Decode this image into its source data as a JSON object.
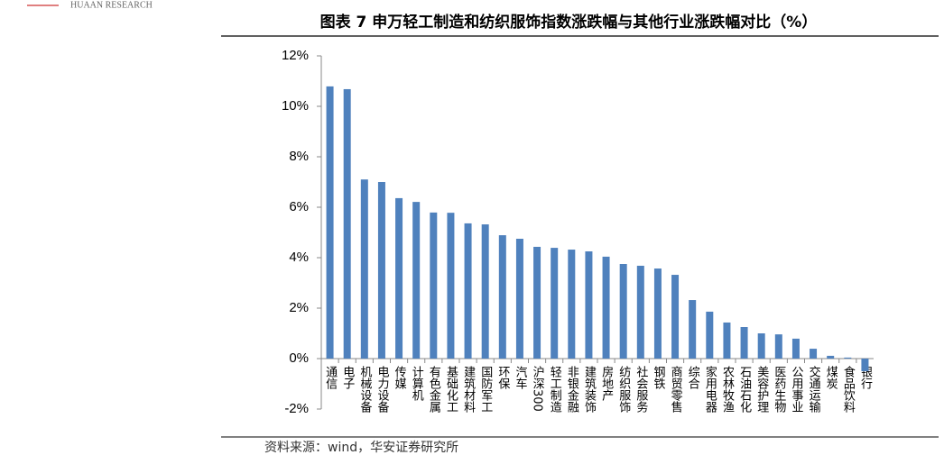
{
  "header": {
    "brand": "HUAAN RESEARCH"
  },
  "chart_data": {
    "type": "bar",
    "title": "图表 7 申万轻工制造和纺织服饰指数涨跌幅与其他行业涨跌幅对比（%）",
    "categories": [
      "通信",
      "电子",
      "机械设备",
      "电力设备",
      "传媒",
      "计算机",
      "有色金属",
      "基础化工",
      "建筑材料",
      "国防军工",
      "环保",
      "汽车",
      "沪深300",
      "轻工制造",
      "非银金融",
      "建筑装饰",
      "房地产",
      "纺织服饰",
      "社会服务",
      "钢铁",
      "商贸零售",
      "综合",
      "家用电器",
      "农林牧渔",
      "石油石化",
      "美容护理",
      "医药生物",
      "公用事业",
      "交通运输",
      "煤炭",
      "食品饮料",
      "银行"
    ],
    "values": [
      10.79,
      10.68,
      7.1,
      7.0,
      6.36,
      6.21,
      5.79,
      5.78,
      5.36,
      5.32,
      4.89,
      4.75,
      4.43,
      4.39,
      4.32,
      4.25,
      4.04,
      3.75,
      3.68,
      3.57,
      3.32,
      2.32,
      1.86,
      1.43,
      1.25,
      1.0,
      0.96,
      0.79,
      0.39,
      0.11,
      0.04,
      -0.5
    ],
    "color": "#4f81bd",
    "ylim": [
      -2,
      12
    ],
    "yticks": [
      {
        "value": -2,
        "label": "-2%"
      },
      {
        "value": 0,
        "label": "0%"
      },
      {
        "value": 2,
        "label": "2%"
      },
      {
        "value": 4,
        "label": "4%"
      },
      {
        "value": 6,
        "label": "6%"
      },
      {
        "value": 8,
        "label": "8%"
      },
      {
        "value": 10,
        "label": "10%"
      },
      {
        "value": 12,
        "label": "12%"
      }
    ],
    "grid": false
  },
  "source": "资料来源：wind，华安证券研究所"
}
